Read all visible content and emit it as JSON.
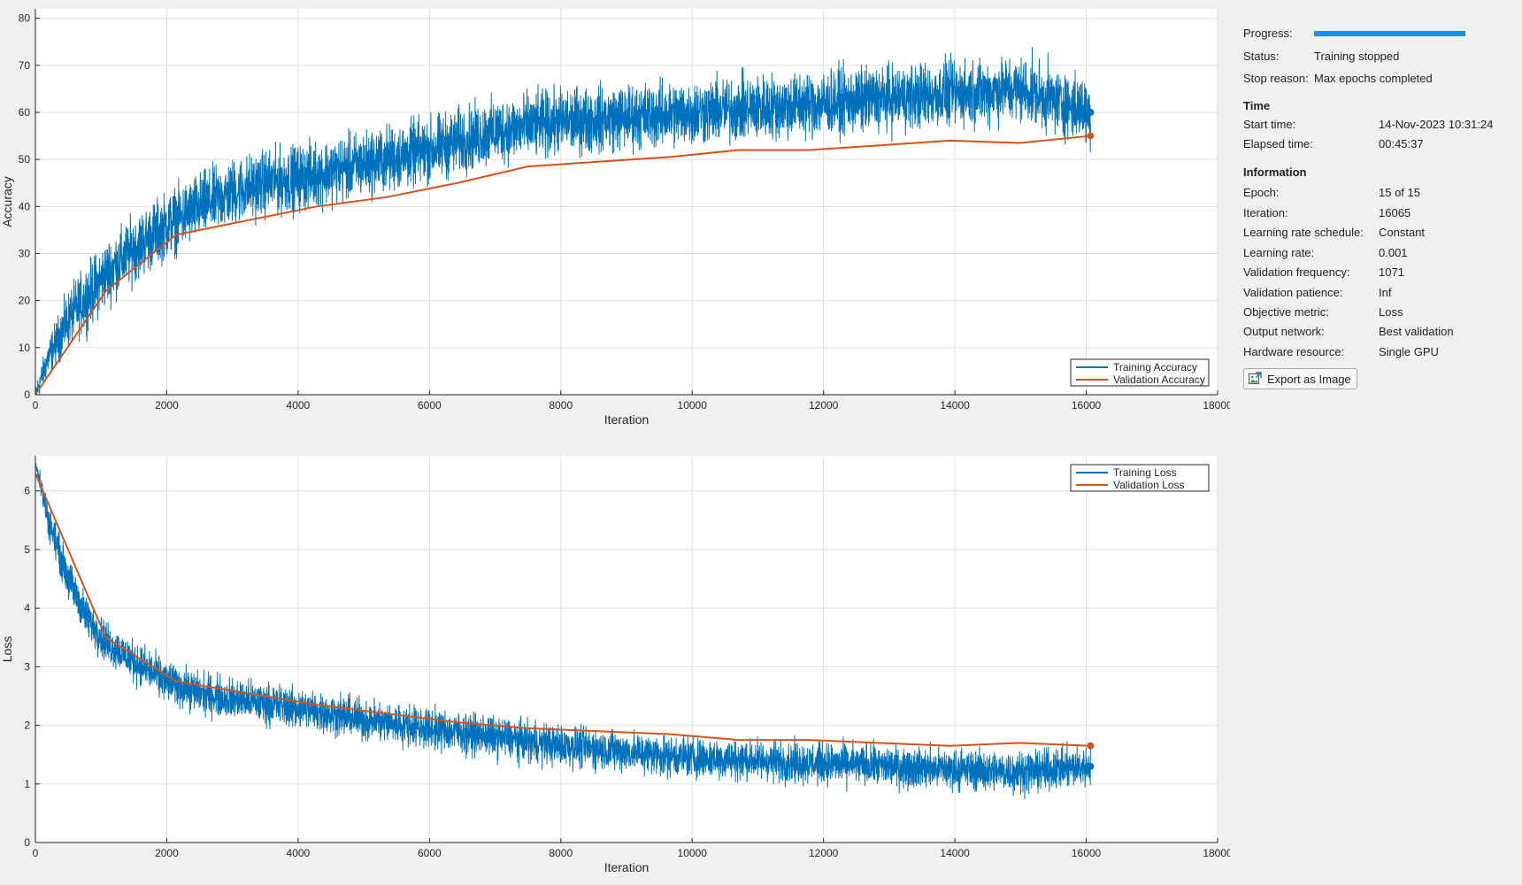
{
  "panel": {
    "progress_label": "Progress:",
    "progress_value": 1.0,
    "status_label": "Status:",
    "status_value": "Training stopped",
    "stop_reason_label": "Stop reason:",
    "stop_reason_value": "Max epochs completed",
    "time_heading": "Time",
    "start_time_label": "Start time:",
    "start_time_value": "14-Nov-2023 10:31:24",
    "elapsed_time_label": "Elapsed time:",
    "elapsed_time_value": "00:45:37",
    "info_heading": "Information",
    "epoch_label": "Epoch:",
    "epoch_value": "15 of 15",
    "iteration_label": "Iteration:",
    "iteration_value": "16065",
    "lr_schedule_label": "Learning rate schedule:",
    "lr_schedule_value": "Constant",
    "lr_label": "Learning rate:",
    "lr_value": "0.001",
    "val_freq_label": "Validation frequency:",
    "val_freq_value": "1071",
    "val_patience_label": "Validation patience:",
    "val_patience_value": "Inf",
    "objective_label": "Objective metric:",
    "objective_value": "Loss",
    "output_network_label": "Output network:",
    "output_network_value": "Best validation",
    "hardware_label": "Hardware resource:",
    "hardware_value": "Single GPU",
    "export_button_label": "Export as Image",
    "export_icon": "export-image-icon"
  },
  "colors": {
    "training": "#0072bd",
    "validation": "#d95319",
    "grid": "#dfdfdf",
    "axes_bg": "#ffffff",
    "progress": "#1a8fe3"
  },
  "chart_data": [
    {
      "type": "line",
      "xlabel": "Iteration",
      "ylabel": "Accuracy",
      "xlim": [
        0,
        18000
      ],
      "ylim": [
        0,
        82
      ],
      "xticks": [
        0,
        2000,
        4000,
        6000,
        8000,
        10000,
        12000,
        14000,
        16000,
        18000
      ],
      "yticks": [
        0,
        10,
        20,
        30,
        40,
        50,
        60,
        70,
        80
      ],
      "grid": true,
      "legend_location": "bottom-right",
      "series": [
        {
          "name": "Training Accuracy",
          "color": "#0072bd",
          "noisy": true,
          "x": [
            0,
            200,
            500,
            800,
            1100,
            1500,
            2000,
            2500,
            3000,
            3500,
            4000,
            5000,
            6000,
            6500,
            7000,
            8000,
            9000,
            10000,
            11000,
            12000,
            13000,
            14000,
            15000,
            16065
          ],
          "y": [
            0,
            8,
            16,
            21,
            26,
            31,
            36,
            40,
            43,
            45,
            46,
            49,
            52,
            54,
            56,
            58,
            59,
            60,
            61,
            62,
            63,
            64,
            65,
            60
          ],
          "band": [
            2,
            4,
            6,
            7,
            7,
            7,
            7,
            7,
            7,
            7,
            7,
            7,
            7,
            7,
            7,
            7,
            7,
            7,
            7,
            7,
            7,
            7,
            7,
            7
          ],
          "end_marker": true
        },
        {
          "name": "Validation Accuracy",
          "color": "#d95319",
          "x": [
            0,
            1071,
            2142,
            3213,
            4284,
            5355,
            6426,
            7497,
            8568,
            9639,
            10710,
            11781,
            12852,
            13923,
            14994,
            16065
          ],
          "y": [
            0,
            22,
            34,
            37,
            40,
            42,
            45,
            48.5,
            49.5,
            50.5,
            52,
            52,
            53,
            54,
            53.5,
            55
          ],
          "end_marker": true
        }
      ]
    },
    {
      "type": "line",
      "xlabel": "Iteration",
      "ylabel": "Loss",
      "xlim": [
        0,
        18000
      ],
      "ylim": [
        0,
        6.6
      ],
      "xticks": [
        0,
        2000,
        4000,
        6000,
        8000,
        10000,
        12000,
        14000,
        16000,
        18000
      ],
      "yticks": [
        0,
        1,
        2,
        3,
        4,
        5,
        6
      ],
      "grid": true,
      "legend_location": "top-right",
      "series": [
        {
          "name": "Training Loss",
          "color": "#0072bd",
          "noisy": true,
          "x": [
            0,
            200,
            500,
            800,
            1100,
            1500,
            2000,
            2500,
            3000,
            4000,
            5000,
            6000,
            7000,
            8000,
            9000,
            10000,
            11000,
            12000,
            13000,
            14000,
            15000,
            16065
          ],
          "y": [
            6.5,
            5.5,
            4.5,
            3.8,
            3.4,
            3.1,
            2.75,
            2.55,
            2.45,
            2.3,
            2.1,
            1.95,
            1.8,
            1.65,
            1.55,
            1.45,
            1.4,
            1.35,
            1.3,
            1.25,
            1.2,
            1.3
          ],
          "band": [
            0.15,
            0.3,
            0.35,
            0.35,
            0.35,
            0.35,
            0.35,
            0.35,
            0.35,
            0.35,
            0.35,
            0.35,
            0.35,
            0.35,
            0.35,
            0.35,
            0.35,
            0.35,
            0.35,
            0.35,
            0.35,
            0.35
          ],
          "end_marker": true
        },
        {
          "name": "Validation Loss",
          "color": "#d95319",
          "x": [
            0,
            1071,
            2142,
            3213,
            4284,
            5355,
            6426,
            7497,
            8568,
            9639,
            10710,
            11781,
            12852,
            13923,
            14994,
            16065
          ],
          "y": [
            6.3,
            3.5,
            2.75,
            2.55,
            2.35,
            2.2,
            2.05,
            1.95,
            1.9,
            1.85,
            1.75,
            1.75,
            1.7,
            1.65,
            1.7,
            1.65
          ],
          "end_marker": true
        }
      ]
    }
  ]
}
